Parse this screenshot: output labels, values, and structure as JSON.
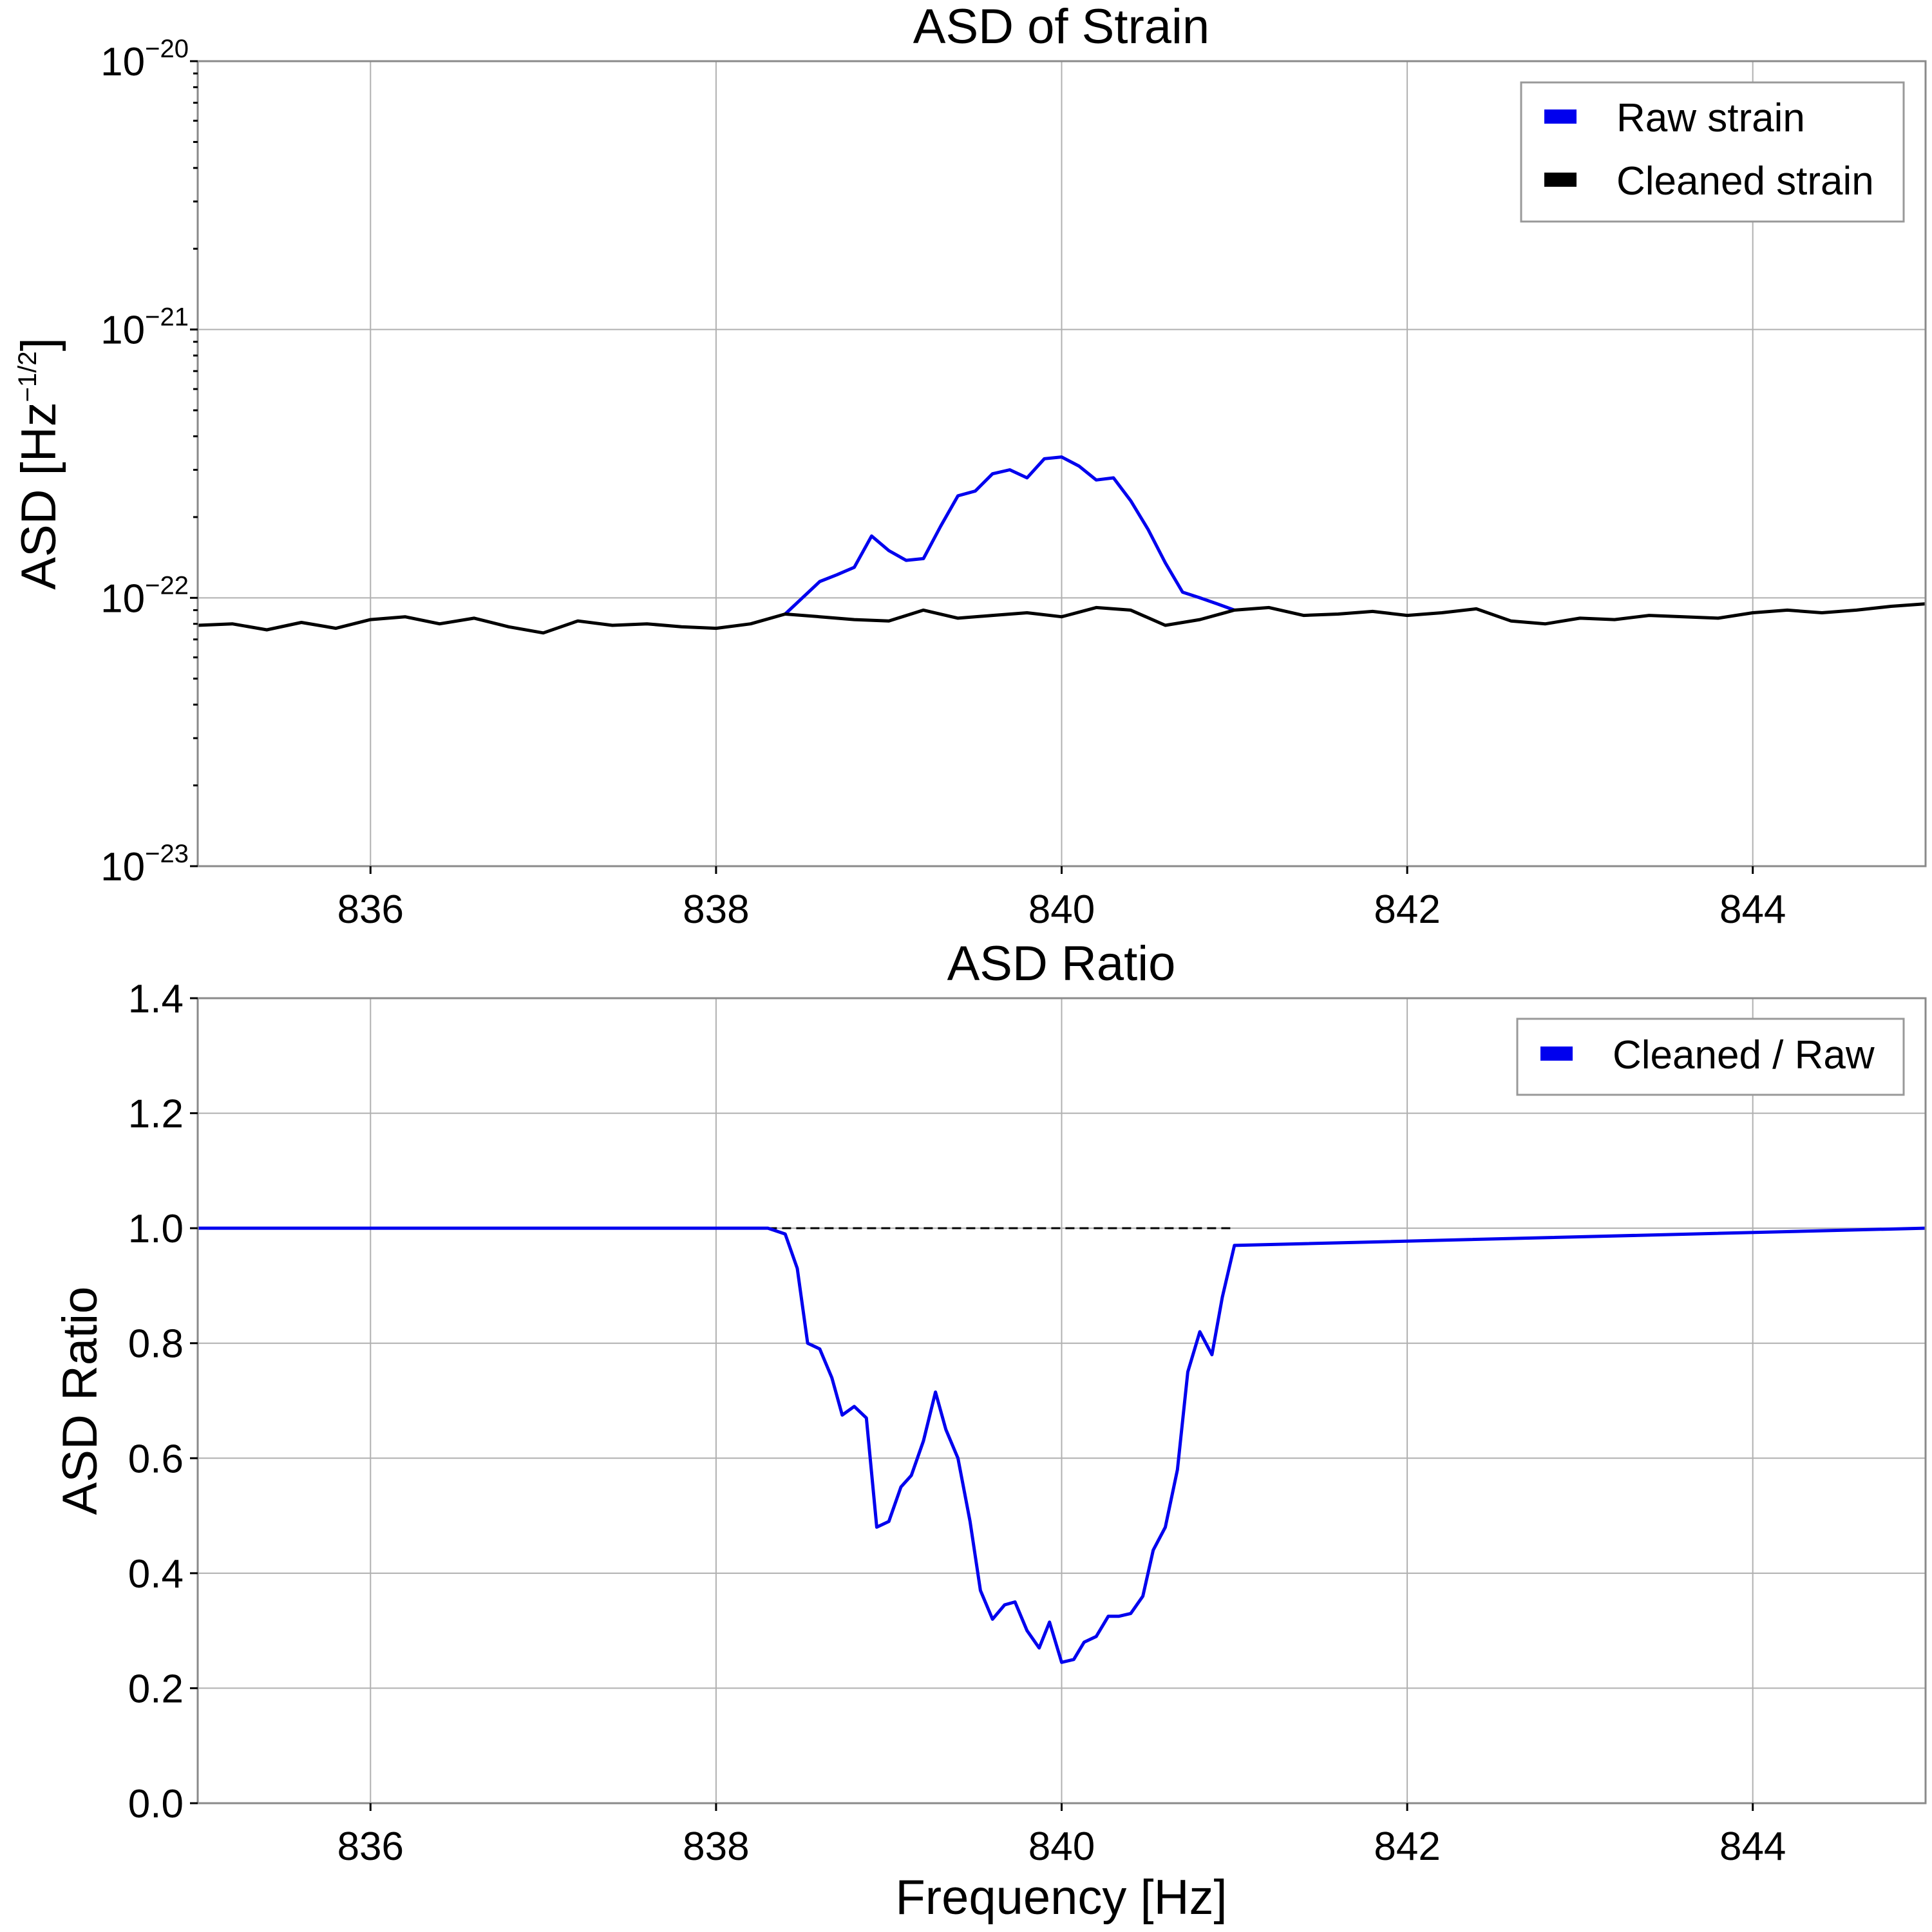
{
  "figure": {
    "background": "#ffffff"
  },
  "colors": {
    "raw": "#0000ee",
    "cleaned": "#000000",
    "ratio": "#0000ee",
    "reference": "#000000"
  },
  "chart_data": [
    {
      "type": "line",
      "title": "ASD of Strain",
      "xlabel": "",
      "ylabel": "ASD [Hz",
      "ylabel_exp": "−1/2",
      "ylabel_close": "]",
      "yscale": "log",
      "xlim": [
        835,
        845
      ],
      "ylim": [
        1e-23,
        1e-20
      ],
      "grid": true,
      "legend_position": "top-right",
      "xticks": [
        {
          "value": 836,
          "label": "836"
        },
        {
          "value": 838,
          "label": "838"
        },
        {
          "value": 840,
          "label": "840"
        },
        {
          "value": 842,
          "label": "842"
        },
        {
          "value": 844,
          "label": "844"
        }
      ],
      "yticks": [
        {
          "value": 1e-23,
          "base": "10",
          "exp": "−23"
        },
        {
          "value": 1e-22,
          "base": "10",
          "exp": "−22"
        },
        {
          "value": 1e-21,
          "base": "10",
          "exp": "−21"
        },
        {
          "value": 1e-20,
          "base": "10",
          "exp": "−20"
        }
      ],
      "series": [
        {
          "name": "Raw strain",
          "color": "#0000ee",
          "x": [
            838.4,
            838.5,
            838.6,
            838.7,
            838.8,
            838.9,
            839.0,
            839.1,
            839.2,
            839.3,
            839.4,
            839.5,
            839.6,
            839.7,
            839.8,
            839.9,
            840.0,
            840.1,
            840.2,
            840.3,
            840.4,
            840.5,
            840.6,
            840.7,
            840.8,
            840.9,
            841.0
          ],
          "y": [
            8.7e-23,
            1e-22,
            1.15e-22,
            1.22e-22,
            1.3e-22,
            1.7e-22,
            1.5e-22,
            1.38e-22,
            1.4e-22,
            1.85e-22,
            2.4e-22,
            2.5e-22,
            2.9e-22,
            3e-22,
            2.8e-22,
            3.3e-22,
            3.35e-22,
            3.1e-22,
            2.75e-22,
            2.8e-22,
            2.3e-22,
            1.8e-22,
            1.35e-22,
            1.05e-22,
            1e-22,
            9.5e-23,
            9e-23
          ]
        },
        {
          "name": "Cleaned strain",
          "color": "#000000",
          "x": [
            835.0,
            835.2,
            835.4,
            835.6,
            835.8,
            836.0,
            836.2,
            836.4,
            836.6,
            836.8,
            837.0,
            837.2,
            837.4,
            837.6,
            837.8,
            838.0,
            838.2,
            838.4,
            838.6,
            838.8,
            839.0,
            839.2,
            839.4,
            839.6,
            839.8,
            840.0,
            840.2,
            840.4,
            840.6,
            840.8,
            841.0,
            841.2,
            841.4,
            841.6,
            841.8,
            842.0,
            842.2,
            842.4,
            842.6,
            842.8,
            843.0,
            843.2,
            843.4,
            843.6,
            843.8,
            844.0,
            844.2,
            844.4,
            844.6,
            844.8,
            845.0
          ],
          "y": [
            7.9e-23,
            8e-23,
            7.6e-23,
            8.1e-23,
            7.7e-23,
            8.3e-23,
            8.5e-23,
            8e-23,
            8.4e-23,
            7.8e-23,
            7.4e-23,
            8.2e-23,
            7.9e-23,
            8e-23,
            7.8e-23,
            7.7e-23,
            8e-23,
            8.7e-23,
            8.5e-23,
            8.3e-23,
            8.2e-23,
            9e-23,
            8.4e-23,
            8.6e-23,
            8.8e-23,
            8.5e-23,
            9.2e-23,
            9e-23,
            7.9e-23,
            8.3e-23,
            9e-23,
            9.2e-23,
            8.6e-23,
            8.7e-23,
            8.9e-23,
            8.6e-23,
            8.8e-23,
            9.1e-23,
            8.2e-23,
            8e-23,
            8.4e-23,
            8.3e-23,
            8.6e-23,
            8.5e-23,
            8.4e-23,
            8.8e-23,
            9e-23,
            8.8e-23,
            9e-23,
            9.3e-23,
            9.5e-23
          ]
        }
      ]
    },
    {
      "type": "line",
      "title": "ASD Ratio",
      "xlabel": "Frequency [Hz]",
      "ylabel": "ASD Ratio",
      "yscale": "linear",
      "xlim": [
        835,
        845
      ],
      "ylim": [
        0.0,
        1.4
      ],
      "grid": true,
      "legend_position": "top-right",
      "xticks": [
        {
          "value": 836,
          "label": "836"
        },
        {
          "value": 838,
          "label": "838"
        },
        {
          "value": 840,
          "label": "840"
        },
        {
          "value": 842,
          "label": "842"
        },
        {
          "value": 844,
          "label": "844"
        }
      ],
      "yticks": [
        {
          "value": 0.0,
          "label": "0.0"
        },
        {
          "value": 0.2,
          "label": "0.2"
        },
        {
          "value": 0.4,
          "label": "0.4"
        },
        {
          "value": 0.6,
          "label": "0.6"
        },
        {
          "value": 0.8,
          "label": "0.8"
        },
        {
          "value": 1.0,
          "label": "1.0"
        },
        {
          "value": 1.2,
          "label": "1.2"
        },
        {
          "value": 1.4,
          "label": "1.4"
        }
      ],
      "reference_line": {
        "y": 1.0,
        "x_range": [
          838.3,
          841.0
        ],
        "style": "dashed"
      },
      "series": [
        {
          "name": "Cleaned / Raw",
          "color": "#0000ee",
          "x": [
            835.0,
            838.3,
            838.4,
            838.47,
            838.53,
            838.6,
            838.67,
            838.73,
            838.8,
            838.87,
            838.93,
            839.0,
            839.07,
            839.13,
            839.2,
            839.27,
            839.33,
            839.4,
            839.47,
            839.53,
            839.6,
            839.67,
            839.73,
            839.8,
            839.87,
            839.93,
            840.0,
            840.07,
            840.13,
            840.2,
            840.27,
            840.33,
            840.4,
            840.47,
            840.53,
            840.6,
            840.67,
            840.73,
            840.8,
            840.87,
            840.93,
            841.0,
            845.0
          ],
          "y": [
            1.0,
            1.0,
            0.99,
            0.93,
            0.8,
            0.79,
            0.74,
            0.675,
            0.69,
            0.67,
            0.48,
            0.49,
            0.55,
            0.57,
            0.63,
            0.715,
            0.65,
            0.6,
            0.49,
            0.37,
            0.32,
            0.345,
            0.35,
            0.3,
            0.27,
            0.315,
            0.245,
            0.25,
            0.28,
            0.29,
            0.325,
            0.325,
            0.33,
            0.36,
            0.44,
            0.48,
            0.58,
            0.75,
            0.82,
            0.78,
            0.88,
            0.97,
            1.0
          ]
        }
      ]
    }
  ]
}
